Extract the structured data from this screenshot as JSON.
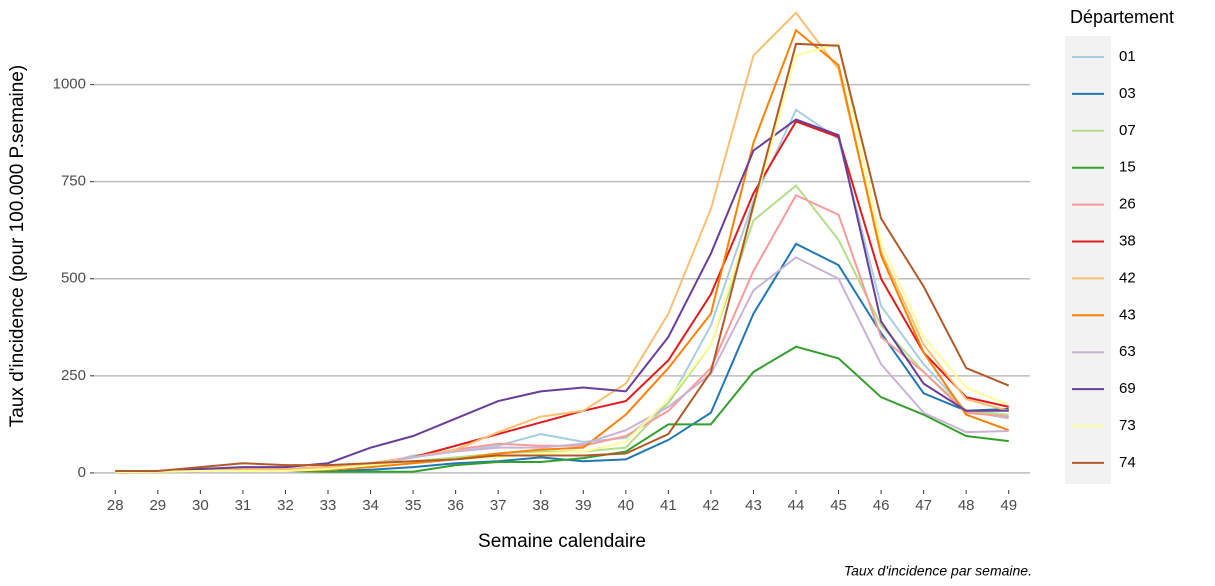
{
  "chart_data": {
    "type": "line",
    "x_label": "Semaine calendaire",
    "y_label": "Taux d'incidence (pour 100.000 P.semaine)",
    "caption": "Taux d'incidence par semaine.",
    "legend_title": "Département",
    "legend_position": "right",
    "grid": true,
    "x": [
      28,
      29,
      30,
      31,
      32,
      33,
      34,
      35,
      36,
      37,
      38,
      39,
      40,
      41,
      42,
      43,
      44,
      45,
      46,
      47,
      48,
      49
    ],
    "xlim": [
      27.5,
      49.5
    ],
    "xticks": [
      28,
      29,
      30,
      31,
      32,
      33,
      34,
      35,
      36,
      37,
      38,
      39,
      40,
      41,
      42,
      43,
      44,
      45,
      46,
      47,
      48,
      49
    ],
    "ylim": [
      -44,
      1205
    ],
    "yticks": [
      0,
      250,
      500,
      750,
      1000
    ],
    "series": [
      {
        "name": "01",
        "color": "#a6cee3",
        "values": [
          2,
          3,
          5,
          5,
          5,
          8,
          15,
          45,
          55,
          70,
          100,
          80,
          90,
          180,
          380,
          700,
          935,
          860,
          430,
          280,
          160,
          140
        ]
      },
      {
        "name": "03",
        "color": "#1f78b4",
        "values": [
          2,
          3,
          5,
          5,
          5,
          5,
          8,
          15,
          25,
          30,
          40,
          30,
          35,
          85,
          155,
          410,
          590,
          535,
          360,
          205,
          160,
          165
        ]
      },
      {
        "name": "07",
        "color": "#b2df8a",
        "values": [
          2,
          3,
          5,
          5,
          5,
          8,
          15,
          30,
          40,
          50,
          55,
          55,
          65,
          180,
          330,
          650,
          740,
          600,
          380,
          260,
          160,
          150
        ]
      },
      {
        "name": "15",
        "color": "#33a02c",
        "values": [
          2,
          3,
          5,
          5,
          5,
          3,
          3,
          3,
          20,
          28,
          28,
          38,
          55,
          125,
          125,
          260,
          325,
          295,
          195,
          150,
          95,
          82
        ]
      },
      {
        "name": "26",
        "color": "#fb9a99",
        "values": [
          2,
          3,
          5,
          5,
          5,
          10,
          20,
          40,
          60,
          75,
          70,
          70,
          95,
          160,
          270,
          520,
          715,
          665,
          350,
          260,
          155,
          145
        ]
      },
      {
        "name": "38",
        "color": "#e31a1c",
        "values": [
          2,
          3,
          8,
          10,
          10,
          15,
          25,
          40,
          70,
          100,
          130,
          160,
          185,
          290,
          460,
          720,
          905,
          865,
          500,
          310,
          195,
          170
        ]
      },
      {
        "name": "42",
        "color": "#fdbf6f",
        "values": [
          2,
          3,
          8,
          10,
          10,
          15,
          25,
          40,
          60,
          105,
          145,
          160,
          230,
          410,
          680,
          1075,
          1185,
          1040,
          570,
          330,
          190,
          160
        ]
      },
      {
        "name": "43",
        "color": "#ff7f00",
        "values": [
          2,
          3,
          5,
          5,
          5,
          8,
          15,
          25,
          35,
          50,
          60,
          65,
          150,
          270,
          410,
          850,
          1140,
          1050,
          560,
          310,
          150,
          110
        ]
      },
      {
        "name": "63",
        "color": "#cab2d6",
        "values": [
          2,
          3,
          5,
          5,
          5,
          10,
          20,
          40,
          55,
          65,
          65,
          75,
          110,
          170,
          255,
          470,
          555,
          500,
          280,
          155,
          105,
          108
        ]
      },
      {
        "name": "69",
        "color": "#6a3d9a",
        "values": [
          5,
          5,
          10,
          15,
          15,
          25,
          65,
          95,
          140,
          185,
          210,
          220,
          210,
          350,
          565,
          830,
          910,
          870,
          390,
          230,
          160,
          160
        ]
      },
      {
        "name": "73",
        "color": "#ffff99",
        "values": [
          2,
          3,
          5,
          5,
          5,
          10,
          20,
          30,
          35,
          40,
          50,
          55,
          80,
          190,
          330,
          680,
          1075,
          1105,
          590,
          350,
          220,
          175
        ]
      },
      {
        "name": "74",
        "color": "#b15928",
        "values": [
          5,
          5,
          15,
          25,
          20,
          20,
          25,
          30,
          35,
          45,
          45,
          45,
          50,
          100,
          260,
          690,
          1105,
          1100,
          655,
          480,
          270,
          225
        ]
      }
    ]
  }
}
